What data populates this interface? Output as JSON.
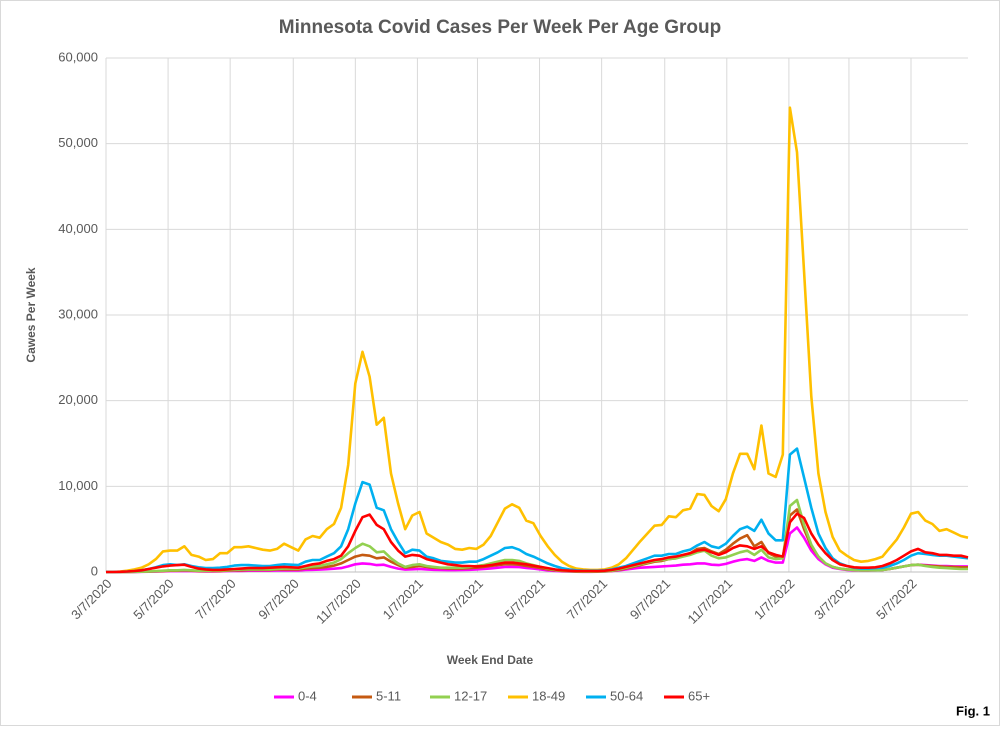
{
  "chart_data": {
    "type": "line",
    "title": "Minnesota Covid Cases Per Week Per Age Group",
    "x_label": "Week End  Date",
    "y_label": "Cawes Per Week",
    "annotation": "Fig. 1",
    "grid": true,
    "legend": "bottom",
    "xlim": [
      "3/7/2020",
      "7/2/2022"
    ],
    "xticks": [
      "3/7/2020",
      "5/7/2020",
      "7/7/2020",
      "9/7/2020",
      "11/7/2020",
      "1/7/2021",
      "3/7/2021",
      "5/7/2021",
      "7/7/2021",
      "9/7/2021",
      "11/7/2021",
      "1/7/2022",
      "3/7/2022",
      "5/7/2022"
    ],
    "ylim": [
      0,
      60000
    ],
    "yticks": [
      0,
      {
        "value": 10000,
        "label": "10,000"
      },
      {
        "value": 20000,
        "label": "20,000"
      },
      {
        "value": 30000,
        "label": "30,000"
      },
      {
        "value": 40000,
        "label": "40,000"
      },
      {
        "value": 50000,
        "label": "50,000"
      },
      {
        "value": 60000,
        "label": "60,000"
      }
    ],
    "x": [
      "3/7/2020",
      "3/14/2020",
      "3/21/2020",
      "3/28/2020",
      "4/4/2020",
      "4/11/2020",
      "4/18/2020",
      "4/25/2020",
      "5/2/2020",
      "5/9/2020",
      "5/16/2020",
      "5/23/2020",
      "5/30/2020",
      "6/6/2020",
      "6/13/2020",
      "6/20/2020",
      "6/27/2020",
      "7/4/2020",
      "7/11/2020",
      "7/18/2020",
      "7/25/2020",
      "8/1/2020",
      "8/8/2020",
      "8/15/2020",
      "8/22/2020",
      "8/29/2020",
      "9/5/2020",
      "9/12/2020",
      "9/19/2020",
      "9/26/2020",
      "10/3/2020",
      "10/10/2020",
      "10/17/2020",
      "10/24/2020",
      "10/31/2020",
      "11/7/2020",
      "11/14/2020",
      "11/21/2020",
      "11/28/2020",
      "12/5/2020",
      "12/12/2020",
      "12/19/2020",
      "12/26/2020",
      "1/2/2021",
      "1/9/2021",
      "1/16/2021",
      "1/23/2021",
      "1/30/2021",
      "2/6/2021",
      "2/13/2021",
      "2/20/2021",
      "2/27/2021",
      "3/6/2021",
      "3/13/2021",
      "3/20/2021",
      "3/27/2021",
      "4/3/2021",
      "4/10/2021",
      "4/17/2021",
      "4/24/2021",
      "5/1/2021",
      "5/8/2021",
      "5/15/2021",
      "5/22/2021",
      "5/29/2021",
      "6/5/2021",
      "6/12/2021",
      "6/19/2021",
      "6/26/2021",
      "7/3/2021",
      "7/10/2021",
      "7/17/2021",
      "7/24/2021",
      "7/31/2021",
      "8/7/2021",
      "8/14/2021",
      "8/21/2021",
      "8/28/2021",
      "9/4/2021",
      "9/11/2021",
      "9/18/2021",
      "9/25/2021",
      "10/2/2021",
      "10/9/2021",
      "10/16/2021",
      "10/23/2021",
      "10/30/2021",
      "11/6/2021",
      "11/13/2021",
      "11/20/2021",
      "11/27/2021",
      "12/4/2021",
      "12/11/2021",
      "12/18/2021",
      "12/25/2021",
      "1/1/2022",
      "1/8/2022",
      "1/15/2022",
      "1/22/2022",
      "1/29/2022",
      "2/5/2022",
      "2/12/2022",
      "2/19/2022",
      "2/26/2022",
      "3/5/2022",
      "3/12/2022",
      "3/19/2022",
      "3/26/2022",
      "4/2/2022",
      "4/9/2022",
      "4/16/2022",
      "4/23/2022",
      "4/30/2022",
      "5/7/2022",
      "5/14/2022",
      "5/21/2022",
      "5/28/2022",
      "6/4/2022",
      "6/11/2022",
      "6/18/2022",
      "6/25/2022",
      "7/2/2022"
    ],
    "series": [
      {
        "name": "0-4",
        "color": "#ff00ff",
        "values": [
          0,
          0,
          0,
          5,
          10,
          20,
          30,
          50,
          80,
          100,
          100,
          120,
          100,
          80,
          70,
          70,
          80,
          100,
          120,
          130,
          150,
          150,
          150,
          150,
          170,
          180,
          180,
          180,
          230,
          260,
          280,
          330,
          380,
          450,
          650,
          900,
          1000,
          950,
          800,
          850,
          600,
          400,
          280,
          320,
          350,
          300,
          260,
          230,
          220,
          220,
          230,
          260,
          300,
          350,
          420,
          500,
          580,
          600,
          570,
          480,
          400,
          300,
          200,
          130,
          80,
          50,
          30,
          25,
          25,
          30,
          50,
          100,
          200,
          300,
          400,
          500,
          550,
          600,
          650,
          700,
          750,
          850,
          900,
          1000,
          1000,
          850,
          800,
          950,
          1200,
          1400,
          1500,
          1300,
          1700,
          1300,
          1100,
          1100,
          4500,
          5200,
          4000,
          2500,
          1500,
          900,
          500,
          350,
          250,
          200,
          180,
          180,
          200,
          250,
          350,
          500,
          650,
          800,
          850,
          800,
          750,
          700,
          700,
          650,
          650,
          650
        ]
      },
      {
        "name": "5-11",
        "color": "#c55a11",
        "values": [
          0,
          0,
          0,
          10,
          20,
          30,
          50,
          80,
          100,
          150,
          150,
          200,
          150,
          100,
          100,
          100,
          100,
          150,
          200,
          200,
          250,
          250,
          250,
          250,
          300,
          300,
          300,
          300,
          400,
          450,
          500,
          600,
          750,
          1000,
          1400,
          1800,
          2000,
          1900,
          1600,
          1700,
          1200,
          800,
          500,
          600,
          700,
          600,
          500,
          450,
          400,
          400,
          400,
          450,
          500,
          600,
          700,
          800,
          900,
          900,
          850,
          700,
          600,
          450,
          300,
          200,
          120,
          80,
          50,
          40,
          40,
          50,
          70,
          120,
          250,
          400,
          600,
          800,
          1000,
          1200,
          1300,
          1500,
          1600,
          1900,
          2200,
          2700,
          2800,
          2400,
          2100,
          2600,
          3300,
          3900,
          4300,
          3000,
          3500,
          2200,
          1800,
          1600,
          6600,
          7300,
          5000,
          3000,
          1800,
          1000,
          600,
          400,
          300,
          250,
          200,
          200,
          220,
          250,
          350,
          500,
          650,
          800,
          850,
          750,
          700,
          650,
          600,
          600,
          550,
          550
        ]
      },
      {
        "name": "12-17",
        "color": "#92d050",
        "values": [
          0,
          0,
          0,
          10,
          20,
          40,
          60,
          100,
          150,
          200,
          200,
          250,
          200,
          150,
          150,
          150,
          150,
          200,
          250,
          300,
          300,
          300,
          300,
          300,
          350,
          400,
          400,
          400,
          550,
          650,
          700,
          900,
          1100,
          1500,
          2200,
          2800,
          3300,
          3000,
          2300,
          2400,
          1600,
          1000,
          600,
          800,
          900,
          700,
          600,
          500,
          500,
          500,
          500,
          600,
          700,
          800,
          1000,
          1200,
          1400,
          1400,
          1300,
          1000,
          800,
          600,
          400,
          250,
          150,
          100,
          60,
          50,
          50,
          60,
          80,
          150,
          300,
          500,
          700,
          900,
          1100,
          1300,
          1400,
          1500,
          1600,
          1800,
          2000,
          2300,
          2500,
          1900,
          1600,
          1700,
          2000,
          2300,
          2500,
          2000,
          2600,
          1700,
          1500,
          1600,
          7700,
          8400,
          5500,
          3200,
          1800,
          1000,
          600,
          400,
          300,
          250,
          200,
          200,
          200,
          250,
          350,
          500,
          650,
          800,
          850,
          700,
          600,
          500,
          450,
          400,
          350,
          350
        ]
      },
      {
        "name": "18-49",
        "color": "#ffc000",
        "values": [
          0,
          0,
          50,
          150,
          300,
          500,
          900,
          1500,
          2400,
          2500,
          2500,
          3000,
          2000,
          1800,
          1400,
          1500,
          2200,
          2200,
          2900,
          2900,
          3000,
          2800,
          2600,
          2500,
          2700,
          3300,
          2900,
          2500,
          3800,
          4200,
          4000,
          5000,
          5600,
          7500,
          12500,
          22000,
          25700,
          22800,
          17200,
          18000,
          11500,
          8000,
          5000,
          6600,
          7000,
          4500,
          4000,
          3500,
          3200,
          2700,
          2600,
          2800,
          2700,
          3200,
          4200,
          5800,
          7400,
          7900,
          7500,
          6000,
          5700,
          4200,
          3000,
          2000,
          1200,
          700,
          400,
          300,
          250,
          250,
          300,
          500,
          900,
          1600,
          2600,
          3600,
          4500,
          5400,
          5500,
          6500,
          6400,
          7200,
          7400,
          9100,
          9000,
          7700,
          7100,
          8500,
          11500,
          13800,
          13800,
          12000,
          17100,
          11500,
          11100,
          13700,
          54200,
          49000,
          35000,
          20500,
          11500,
          7000,
          4100,
          2500,
          1900,
          1400,
          1200,
          1300,
          1500,
          1800,
          2800,
          3800,
          5200,
          6800,
          7000,
          6000,
          5600,
          4800,
          5000,
          4600,
          4200,
          4000
        ]
      },
      {
        "name": "50-64",
        "color": "#00b0f0",
        "values": [
          0,
          0,
          20,
          60,
          120,
          200,
          350,
          550,
          800,
          900,
          800,
          900,
          700,
          550,
          450,
          450,
          500,
          600,
          750,
          800,
          800,
          750,
          700,
          700,
          800,
          900,
          850,
          800,
          1200,
          1400,
          1400,
          1800,
          2200,
          3000,
          5000,
          8000,
          10500,
          10200,
          7500,
          7200,
          5000,
          3500,
          2200,
          2600,
          2500,
          1800,
          1600,
          1300,
          1200,
          1100,
          1100,
          1200,
          1200,
          1500,
          1900,
          2300,
          2800,
          2900,
          2600,
          2100,
          1800,
          1400,
          1000,
          700,
          450,
          300,
          200,
          150,
          150,
          150,
          200,
          300,
          500,
          700,
          1000,
          1300,
          1600,
          1900,
          1900,
          2100,
          2100,
          2400,
          2600,
          3100,
          3500,
          3000,
          2800,
          3300,
          4200,
          5000,
          5300,
          4800,
          6100,
          4500,
          3700,
          3700,
          13700,
          14400,
          11000,
          7500,
          4500,
          2800,
          1600,
          1000,
          700,
          500,
          400,
          400,
          450,
          500,
          700,
          1000,
          1400,
          1900,
          2200,
          2100,
          2000,
          1900,
          1900,
          1800,
          1700,
          1600
        ]
      },
      {
        "name": "65+",
        "color": "#ff0000",
        "values": [
          0,
          0,
          20,
          60,
          120,
          200,
          350,
          500,
          650,
          750,
          800,
          850,
          600,
          400,
          300,
          250,
          250,
          300,
          350,
          400,
          450,
          450,
          450,
          500,
          550,
          600,
          550,
          500,
          700,
          900,
          1000,
          1300,
          1500,
          1900,
          3000,
          4800,
          6400,
          6700,
          5500,
          5000,
          3500,
          2500,
          1800,
          2000,
          1900,
          1500,
          1300,
          1100,
          900,
          800,
          700,
          700,
          650,
          700,
          800,
          950,
          1100,
          1100,
          1000,
          900,
          750,
          600,
          450,
          300,
          200,
          150,
          100,
          100,
          100,
          100,
          150,
          250,
          400,
          600,
          800,
          1000,
          1200,
          1400,
          1500,
          1700,
          1800,
          2000,
          2200,
          2500,
          2600,
          2300,
          2000,
          2300,
          2800,
          3100,
          3000,
          2700,
          3000,
          2300,
          2000,
          1800,
          5800,
          6800,
          6300,
          4500,
          3200,
          2200,
          1400,
          900,
          700,
          550,
          500,
          500,
          550,
          700,
          1000,
          1400,
          1900,
          2400,
          2700,
          2300,
          2200,
          2000,
          2000,
          1900,
          1900,
          1700
        ]
      }
    ]
  }
}
